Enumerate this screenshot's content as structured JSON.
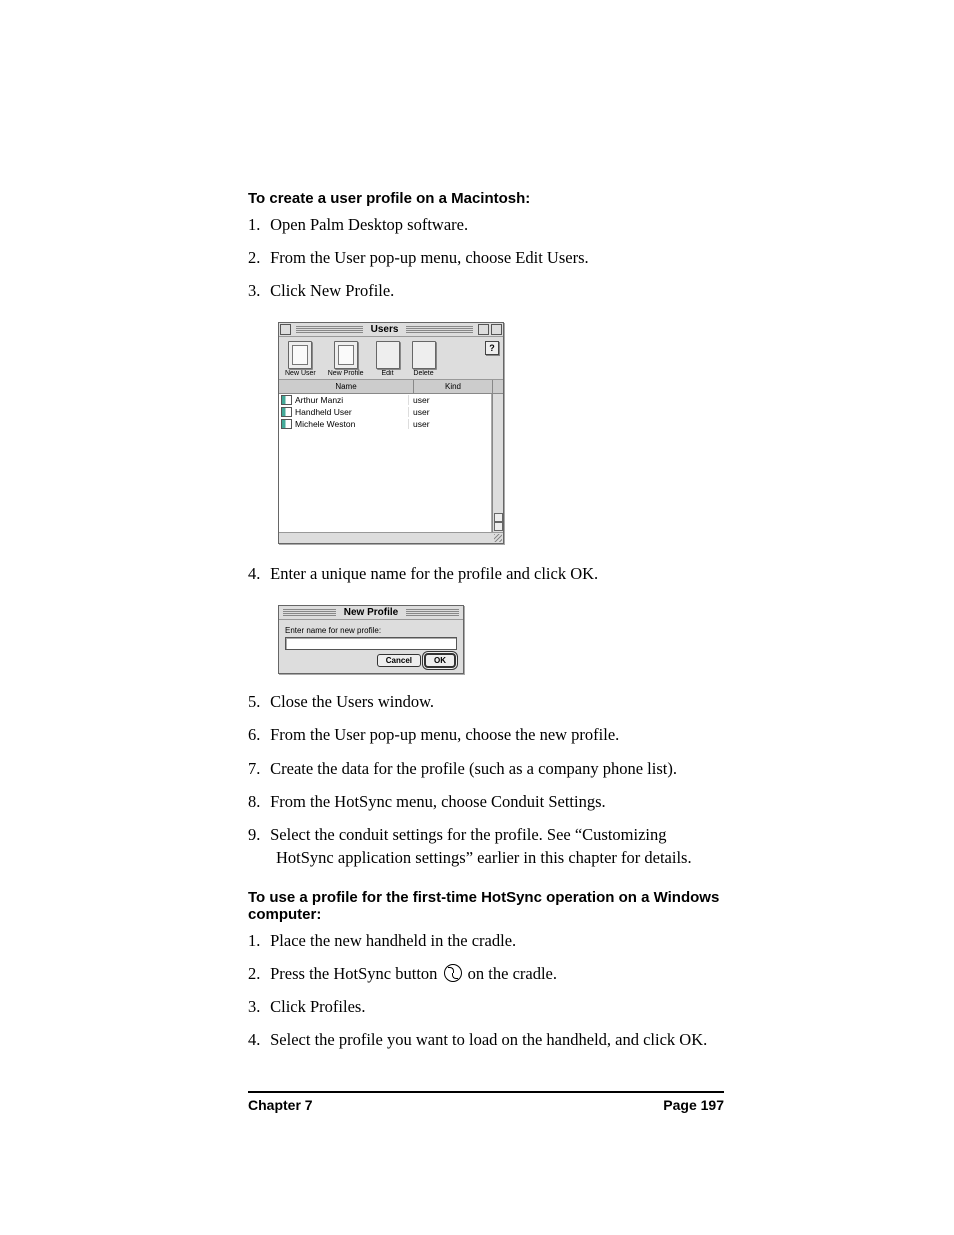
{
  "section1_heading": "To create a user profile on a Macintosh:",
  "section1_steps": {
    "s1": "Open Palm Desktop software.",
    "s2": "From the User pop-up menu, choose Edit Users.",
    "s3": "Click New Profile.",
    "s4": "Enter a unique name for the profile and click OK.",
    "s5": "Close the Users window.",
    "s6": "From the User pop-up menu, choose the new profile.",
    "s7": "Create the data for the profile (such as a company phone list).",
    "s8": "From the HotSync menu, choose Conduit Settings.",
    "s9": "Select the conduit settings for the profile. See “Customizing HotSync application settings” earlier in this chapter for details."
  },
  "users_window": {
    "title": "Users",
    "toolbar": {
      "new_user": "New User",
      "new_profile": "New Profile",
      "edit": "Edit",
      "delete": "Delete"
    },
    "help": "?",
    "columns": {
      "name": "Name",
      "kind": "Kind"
    },
    "rows": [
      {
        "name": "Arthur Manzi",
        "kind": "user"
      },
      {
        "name": "Handheld User",
        "kind": "user"
      },
      {
        "name": "Michele Weston",
        "kind": "user"
      }
    ]
  },
  "new_profile_dialog": {
    "title": "New Profile",
    "label": "Enter name for new profile:",
    "cancel": "Cancel",
    "ok": "OK"
  },
  "section2_heading": "To use a profile for the first-time HotSync operation on a Windows computer:",
  "section2_steps": {
    "s1": "Place the new handheld in the cradle.",
    "s2a": "Press the HotSync button ",
    "s2b": " on the cradle.",
    "s3": "Click Profiles.",
    "s4": "Select the profile you want to load on the handheld, and click OK."
  },
  "footer": {
    "chapter": "Chapter 7",
    "page": "Page 197"
  },
  "colors": {
    "background": "#ffffff",
    "text": "#000000",
    "window_bg": "#dddddd",
    "list_bg": "#ffffff"
  }
}
